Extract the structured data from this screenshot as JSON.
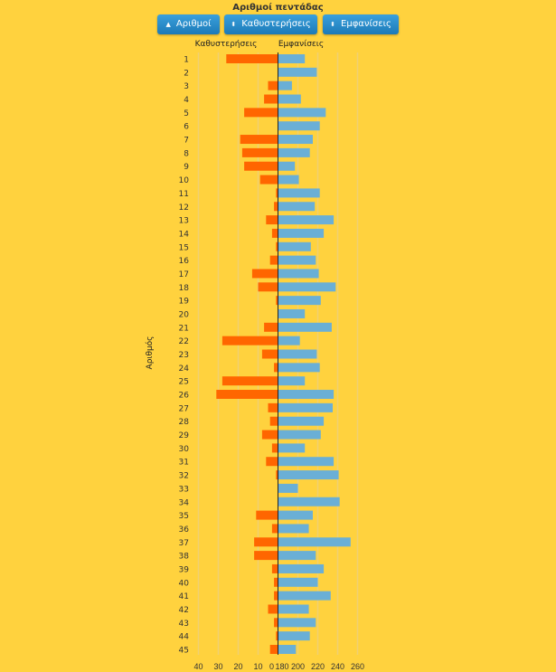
{
  "chart_data": {
    "type": "bar",
    "title": "Αριθμοί πεντάδας",
    "ylabel": "Αριθμός",
    "left_series_label": "Καθυστερήσεις",
    "right_series_label": "Εμφανίσεις",
    "categories": [
      "1",
      "2",
      "3",
      "4",
      "5",
      "6",
      "7",
      "8",
      "9",
      "10",
      "11",
      "12",
      "13",
      "14",
      "15",
      "16",
      "17",
      "18",
      "19",
      "20",
      "21",
      "22",
      "23",
      "24",
      "25",
      "26",
      "27",
      "28",
      "29",
      "30",
      "31",
      "32",
      "33",
      "34",
      "35",
      "36",
      "37",
      "38",
      "39",
      "40",
      "41",
      "42",
      "43",
      "44",
      "45"
    ],
    "series": [
      {
        "name": "Καθυστερήσεις",
        "color": "#ff6600",
        "values": [
          26,
          0,
          5,
          7,
          17,
          0,
          19,
          18,
          17,
          9,
          1,
          2,
          6,
          3,
          1,
          4,
          13,
          10,
          1,
          0,
          7,
          28,
          8,
          2,
          28,
          31,
          5,
          4,
          8,
          3,
          6,
          1,
          0,
          0,
          11,
          3,
          12,
          12,
          3,
          2,
          2,
          5,
          2,
          1,
          4
        ]
      },
      {
        "name": "Εμφανίσεις",
        "color": "#6aafd6",
        "values": [
          207,
          219,
          194,
          203,
          228,
          222,
          215,
          212,
          197,
          201,
          222,
          217,
          236,
          226,
          213,
          218,
          221,
          238,
          223,
          207,
          234,
          202,
          219,
          222,
          207,
          236,
          235,
          226,
          223,
          207,
          236,
          241,
          200,
          242,
          215,
          211,
          253,
          218,
          226,
          220,
          233,
          211,
          218,
          212,
          198
        ]
      }
    ],
    "left_axis": {
      "ticks": [
        40,
        30,
        20,
        10,
        0
      ],
      "range": [
        0,
        40
      ]
    },
    "right_axis": {
      "ticks": [
        180,
        200,
        220,
        240,
        260
      ],
      "range": [
        180,
        260
      ]
    },
    "grid": true
  },
  "buttons": [
    {
      "label": "Αριθμοί",
      "icon": "sort-asc-icon",
      "glyph": "▲"
    },
    {
      "label": "Καθυστερήσεις",
      "icon": "sort-icon",
      "glyph": "⬍"
    },
    {
      "label": "Εμφανίσεις",
      "icon": "sort-icon",
      "glyph": "⬍"
    }
  ]
}
